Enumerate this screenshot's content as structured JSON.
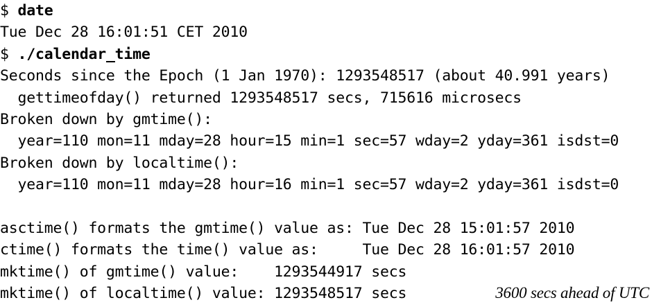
{
  "terminal": {
    "lines": [
      {
        "prompt": "$ ",
        "command": "date"
      },
      {
        "text": "Tue Dec 28 16:01:51 CET 2010"
      },
      {
        "prompt": "$ ",
        "command": "./calendar_time"
      },
      {
        "text": "Seconds since the Epoch (1 Jan 1970): 1293548517 (about 40.991 years)"
      },
      {
        "text": "  gettimeofday() returned 1293548517 secs, 715616 microsecs"
      },
      {
        "text": "Broken down by gmtime():"
      },
      {
        "text": "  year=110 mon=11 mday=28 hour=15 min=1 sec=57 wday=2 yday=361 isdst=0"
      },
      {
        "text": "Broken down by localtime():"
      },
      {
        "text": "  year=110 mon=11 mday=28 hour=16 min=1 sec=57 wday=2 yday=361 isdst=0"
      },
      {
        "text": ""
      },
      {
        "text": "asctime() formats the gmtime() value as: Tue Dec 28 15:01:57 2010"
      },
      {
        "text": "ctime() formats the time() value as:     Tue Dec 28 16:01:57 2010"
      },
      {
        "text": "mktime() of gmtime() value:    1293544917 secs"
      },
      {
        "text": "mktime() of localtime() value: 1293548517 secs"
      }
    ],
    "annotation": "3600 secs ahead of UTC"
  }
}
